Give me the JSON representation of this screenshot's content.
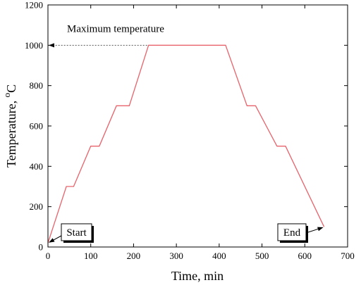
{
  "chart_data": {
    "type": "line",
    "xlabel": "Time, min",
    "ylabel": "Temperature, ",
    "ylabel_unit": "C",
    "ylabel_superscript": "o",
    "xlim": [
      0,
      700
    ],
    "ylim": [
      0,
      1200
    ],
    "xticks": [
      0,
      100,
      200,
      300,
      400,
      500,
      600,
      700
    ],
    "yticks": [
      0,
      200,
      400,
      600,
      800,
      1000,
      1200
    ],
    "grid": false,
    "series": [
      {
        "color": "#e8636b",
        "x": [
          0,
          43,
          60,
          100,
          120,
          160,
          190,
          235,
          415,
          465,
          485,
          535,
          555,
          645
        ],
        "y": [
          20,
          300,
          300,
          500,
          500,
          700,
          700,
          1000,
          1000,
          700,
          700,
          500,
          500,
          100
        ]
      }
    ],
    "annotations": [
      {
        "id": "max",
        "text": "Maximum temperature",
        "style": "dotted-arrow",
        "from_x": 235,
        "to_x": 0,
        "y": 1000
      },
      {
        "id": "start",
        "text": "Start",
        "style": "box-arrow",
        "point_x": 0,
        "point_y": 20
      },
      {
        "id": "end",
        "text": "End",
        "style": "box-arrow",
        "point_x": 645,
        "point_y": 100
      }
    ]
  }
}
